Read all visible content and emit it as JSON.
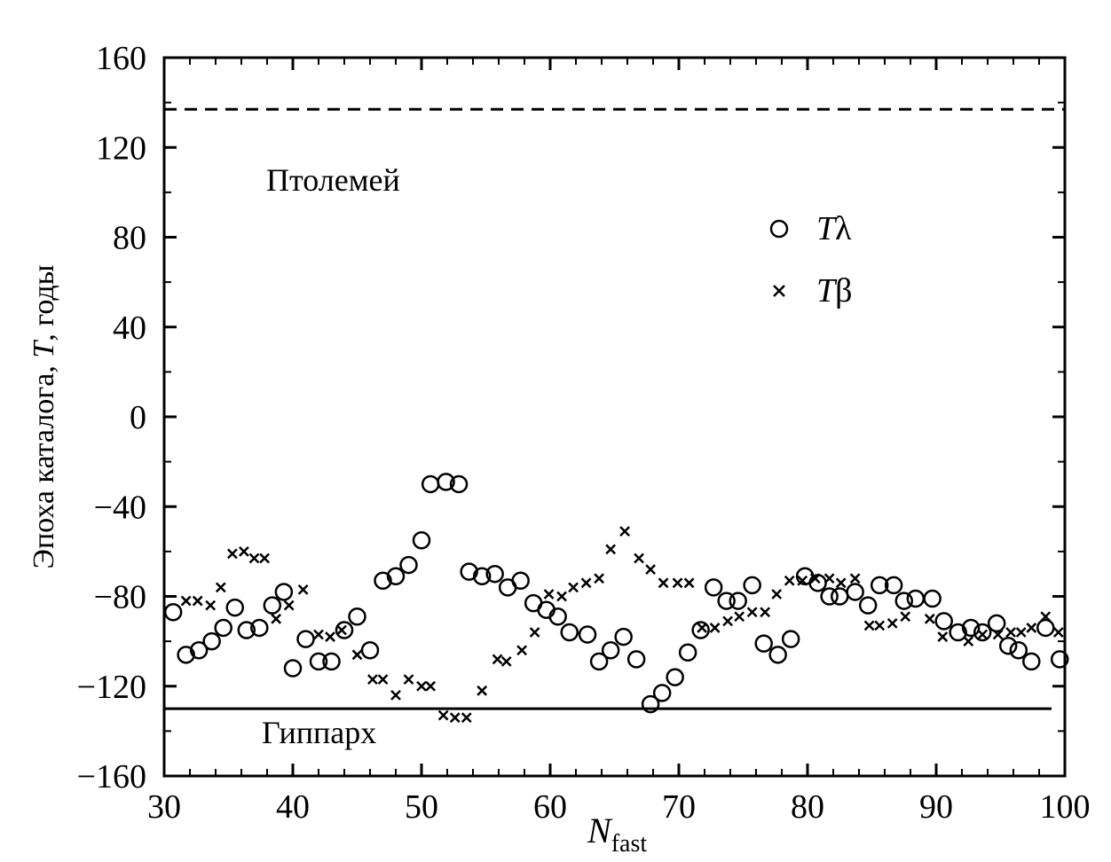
{
  "chart_data": {
    "type": "scatter",
    "xlabel": "N",
    "xlabel_sub": "fast",
    "ylabel_prefix": "Эпоха каталога, ",
    "ylabel_var": "T",
    "ylabel_suffix": ", годы",
    "xlim": [
      30,
      100
    ],
    "ylim": [
      -160,
      160
    ],
    "x_ticks": [
      30,
      40,
      50,
      60,
      70,
      80,
      90,
      100
    ],
    "x_tick_labels": [
      "30",
      "40",
      "50",
      "60",
      "70",
      "80",
      "90",
      "100"
    ],
    "y_ticks": [
      160,
      120,
      80,
      40,
      0,
      -40,
      -80,
      -120,
      -160
    ],
    "y_tick_labels": [
      "160",
      "120",
      "80",
      "40",
      "0",
      "−40",
      "−80",
      "−120",
      "−160"
    ],
    "grid": false,
    "legend_position": "upper-right",
    "reference_lines": [
      {
        "label": "Птолемей",
        "y": 137,
        "style": "dashed"
      },
      {
        "label": "Гиппарх",
        "y": -130,
        "style": "solid"
      }
    ],
    "series": [
      {
        "name": "Tλ",
        "name_var": "T",
        "name_sym": "λ",
        "marker": "circle",
        "points": [
          [
            30.7,
            -87
          ],
          [
            31.7,
            -106
          ],
          [
            32.7,
            -104
          ],
          [
            33.7,
            -100
          ],
          [
            34.6,
            -94
          ],
          [
            35.5,
            -85
          ],
          [
            36.4,
            -95
          ],
          [
            37.4,
            -94
          ],
          [
            38.4,
            -84
          ],
          [
            39.3,
            -78
          ],
          [
            40.0,
            -112
          ],
          [
            41.0,
            -99
          ],
          [
            42.0,
            -109
          ],
          [
            43.0,
            -109
          ],
          [
            44.0,
            -95
          ],
          [
            45.0,
            -89
          ],
          [
            46.0,
            -104
          ],
          [
            47.0,
            -73
          ],
          [
            48.0,
            -71
          ],
          [
            49.0,
            -66
          ],
          [
            50.0,
            -55
          ],
          [
            50.7,
            -30
          ],
          [
            51.9,
            -29
          ],
          [
            52.9,
            -30
          ],
          [
            53.7,
            -69
          ],
          [
            54.7,
            -71
          ],
          [
            55.7,
            -70
          ],
          [
            56.7,
            -76
          ],
          [
            57.7,
            -73
          ],
          [
            58.7,
            -83
          ],
          [
            59.7,
            -86
          ],
          [
            60.6,
            -89
          ],
          [
            61.5,
            -96
          ],
          [
            62.9,
            -97
          ],
          [
            63.8,
            -109
          ],
          [
            64.7,
            -104
          ],
          [
            65.7,
            -98
          ],
          [
            66.7,
            -108
          ],
          [
            67.8,
            -128
          ],
          [
            68.7,
            -123
          ],
          [
            69.7,
            -116
          ],
          [
            70.7,
            -105
          ],
          [
            71.7,
            -95
          ],
          [
            72.7,
            -76
          ],
          [
            73.7,
            -82
          ],
          [
            74.6,
            -82
          ],
          [
            75.7,
            -75
          ],
          [
            76.6,
            -101
          ],
          [
            77.7,
            -106
          ],
          [
            78.7,
            -99
          ],
          [
            79.8,
            -71
          ],
          [
            80.8,
            -74
          ],
          [
            81.7,
            -80
          ],
          [
            82.5,
            -80
          ],
          [
            83.7,
            -78
          ],
          [
            84.7,
            -84
          ],
          [
            85.6,
            -75
          ],
          [
            86.7,
            -75
          ],
          [
            87.5,
            -82
          ],
          [
            88.4,
            -81
          ],
          [
            89.7,
            -81
          ],
          [
            90.6,
            -91
          ],
          [
            91.7,
            -96
          ],
          [
            92.7,
            -94
          ],
          [
            93.6,
            -96
          ],
          [
            94.7,
            -92
          ],
          [
            95.6,
            -102
          ],
          [
            96.4,
            -104
          ],
          [
            97.4,
            -109
          ],
          [
            98.5,
            -94
          ],
          [
            99.6,
            -108
          ]
        ]
      },
      {
        "name": "Tβ",
        "name_var": "T",
        "name_sym": "β",
        "marker": "x",
        "points": [
          [
            31.7,
            -82
          ],
          [
            32.6,
            -82
          ],
          [
            33.6,
            -84
          ],
          [
            34.4,
            -76
          ],
          [
            35.3,
            -61
          ],
          [
            36.2,
            -60
          ],
          [
            37.0,
            -63
          ],
          [
            37.8,
            -63
          ],
          [
            38.7,
            -90
          ],
          [
            39.7,
            -84
          ],
          [
            40.8,
            -77
          ],
          [
            42.0,
            -97
          ],
          [
            42.9,
            -98
          ],
          [
            43.8,
            -95
          ],
          [
            45.0,
            -106
          ],
          [
            46.2,
            -117
          ],
          [
            47.0,
            -117
          ],
          [
            48.0,
            -124
          ],
          [
            49.0,
            -117
          ],
          [
            50.0,
            -120
          ],
          [
            50.7,
            -120
          ],
          [
            51.7,
            -133
          ],
          [
            52.6,
            -134
          ],
          [
            53.5,
            -134
          ],
          [
            54.7,
            -122
          ],
          [
            55.9,
            -108
          ],
          [
            56.6,
            -109
          ],
          [
            57.8,
            -104
          ],
          [
            58.8,
            -96
          ],
          [
            59.9,
            -79
          ],
          [
            60.9,
            -80
          ],
          [
            61.8,
            -76
          ],
          [
            62.8,
            -74
          ],
          [
            63.8,
            -72
          ],
          [
            64.7,
            -59
          ],
          [
            65.8,
            -51
          ],
          [
            66.9,
            -63
          ],
          [
            67.8,
            -68
          ],
          [
            68.8,
            -74
          ],
          [
            69.9,
            -74
          ],
          [
            70.8,
            -74
          ],
          [
            71.8,
            -94
          ],
          [
            72.8,
            -94
          ],
          [
            73.8,
            -91
          ],
          [
            74.7,
            -89
          ],
          [
            75.7,
            -87
          ],
          [
            76.7,
            -87
          ],
          [
            77.6,
            -79
          ],
          [
            78.6,
            -73
          ],
          [
            79.6,
            -73
          ],
          [
            80.6,
            -72
          ],
          [
            81.7,
            -72
          ],
          [
            82.6,
            -74
          ],
          [
            83.7,
            -72
          ],
          [
            84.8,
            -93
          ],
          [
            85.6,
            -93
          ],
          [
            86.6,
            -92
          ],
          [
            87.6,
            -89
          ],
          [
            89.5,
            -90
          ],
          [
            90.5,
            -98
          ],
          [
            92.5,
            -100
          ],
          [
            93.6,
            -97
          ],
          [
            94.8,
            -97
          ],
          [
            95.8,
            -96
          ],
          [
            96.6,
            -96
          ],
          [
            97.4,
            -94
          ],
          [
            98.5,
            -89
          ],
          [
            99.5,
            -96
          ]
        ]
      }
    ]
  }
}
